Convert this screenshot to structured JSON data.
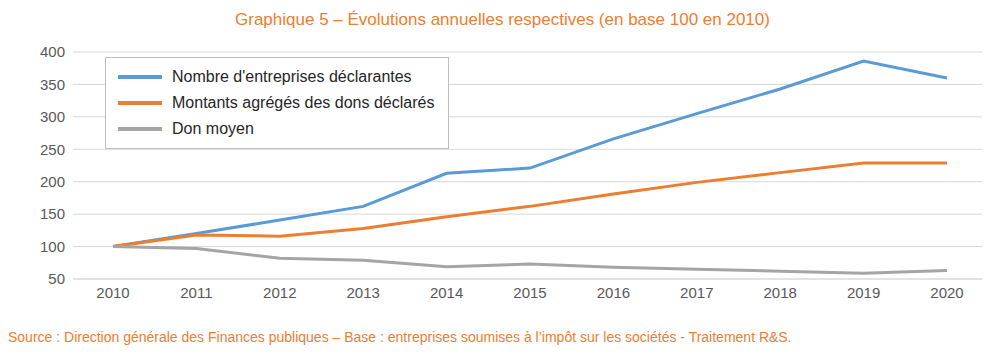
{
  "chart_data": {
    "type": "line",
    "title": "Graphique 5 – Évolutions annuelles respectives (en base 100 en 2010)",
    "source": "Source : Direction générale des Finances publiques – Base : entreprises soumises à l’impôt sur les sociétés - Traitement R&S.",
    "categories": [
      "2010",
      "2011",
      "2012",
      "2013",
      "2014",
      "2015",
      "2016",
      "2017",
      "2018",
      "2019",
      "2020"
    ],
    "series": [
      {
        "name": "Nombre d'entreprises déclarantes",
        "color": "#5b9bd5",
        "values": [
          100,
          120,
          141,
          162,
          213,
          221,
          266,
          305,
          343,
          386,
          360
        ]
      },
      {
        "name": "Montants agrégés des dons déclarés",
        "color": "#ed7d31",
        "values": [
          100,
          118,
          116,
          128,
          146,
          162,
          181,
          199,
          214,
          229,
          229
        ]
      },
      {
        "name": "Don moyen",
        "color": "#a5a5a5",
        "values": [
          100,
          97,
          82,
          79,
          69,
          73,
          68,
          65,
          62,
          59,
          63
        ]
      }
    ],
    "ylim": [
      50,
      400
    ],
    "yticks": [
      50,
      100,
      150,
      200,
      250,
      300,
      350,
      400
    ],
    "grid": true,
    "legend": "top-left"
  }
}
